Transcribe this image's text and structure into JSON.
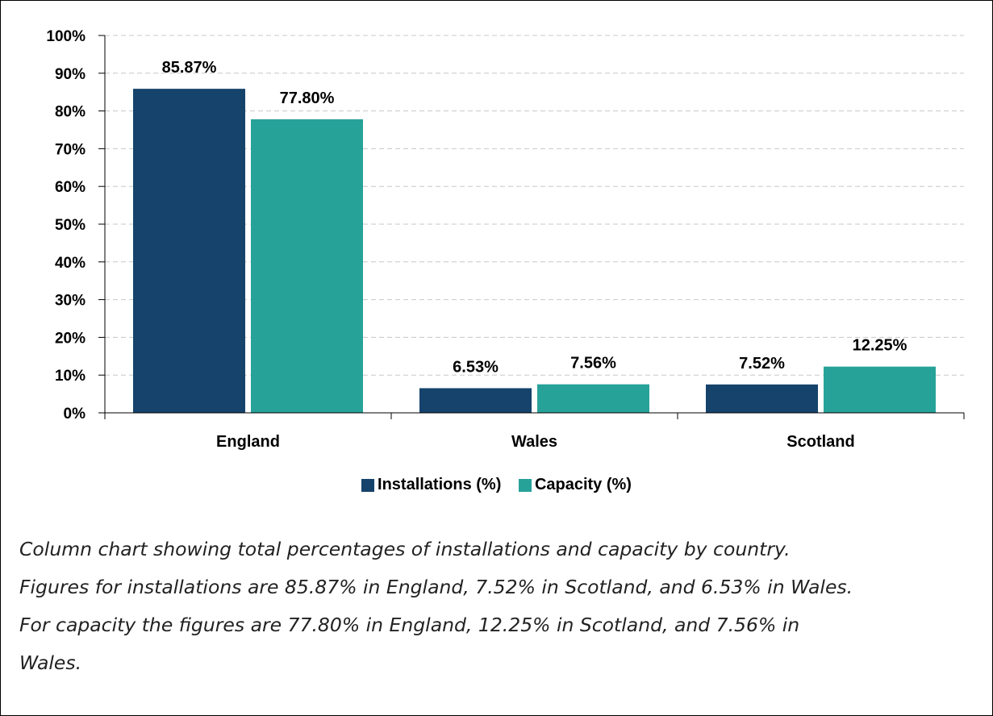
{
  "chart_data": {
    "type": "bar",
    "categories": [
      "England",
      "Wales",
      "Scotland"
    ],
    "series": [
      {
        "name": "Installations (%)",
        "values": [
          85.87,
          6.53,
          7.52
        ],
        "labels": [
          "85.87%",
          "6.53%",
          "7.52%"
        ],
        "color": "#15436b"
      },
      {
        "name": "Capacity (%)",
        "values": [
          77.8,
          7.56,
          12.25
        ],
        "labels": [
          "77.80%",
          "7.56%",
          "12.25%"
        ],
        "color": "#27a299"
      }
    ],
    "ylim": [
      0,
      100
    ],
    "yticks": [
      "0%",
      "10%",
      "20%",
      "30%",
      "40%",
      "50%",
      "60%",
      "70%",
      "80%",
      "90%",
      "100%"
    ],
    "grid": true,
    "legend_position": "bottom"
  },
  "caption": {
    "lines": [
      "Column chart showing total percentages of installations and capacity by country.",
      "Figures for installations are 85.87% in England, 7.52% in Scotland, and 6.53% in Wales.",
      "For capacity the figures are 77.80% in England, 12.25% in Scotland, and 7.56% in",
      "Wales."
    ]
  }
}
